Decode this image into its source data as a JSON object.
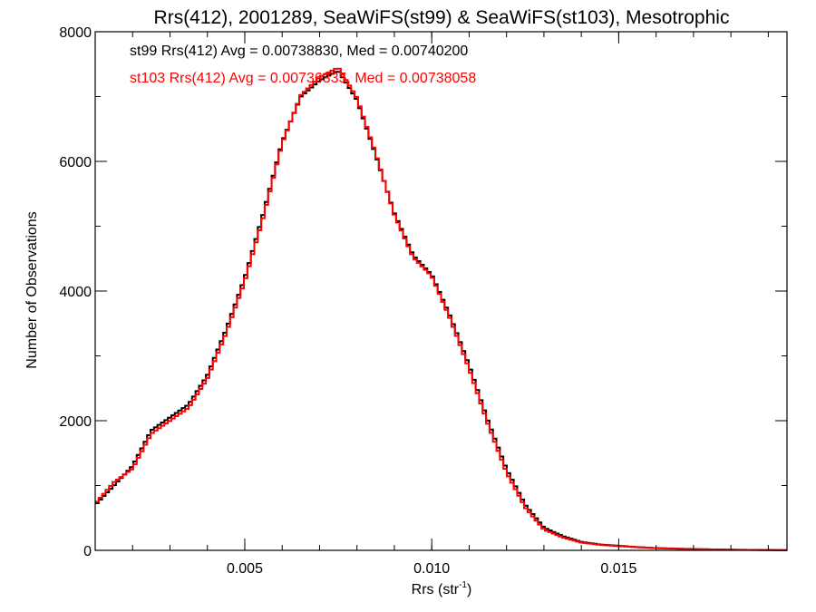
{
  "chart_data": {
    "type": "line",
    "title": "Rrs(412), 2001289, SeaWiFS(st99) & SeaWiFS(st103), Mesotrophic",
    "xlabel": "Rrs (str",
    "xlabel_sup": "-1",
    "xlabel_close": ")",
    "ylabel": "Number of Observations",
    "xlim": [
      0.001,
      0.0195
    ],
    "ylim": [
      0,
      8000
    ],
    "x_ticks": [
      0.005,
      0.01,
      0.015
    ],
    "x_tick_labels": [
      "0.005",
      "0.010",
      "0.015"
    ],
    "y_ticks": [
      0,
      2000,
      4000,
      6000,
      8000
    ],
    "y_tick_labels": [
      "0",
      "2000",
      "4000",
      "6000",
      "8000"
    ],
    "x_minor_step": 0.001,
    "y_minor_step": 1000,
    "grid": false,
    "annotations": [
      {
        "text": "st99 Rrs(412) Avg = 0.00738830, Med = 0.00740200",
        "color": "#000000"
      },
      {
        "text": "st103 Rrs(412) Avg = 0.00736335, Med = 0.00738058",
        "color": "#ff0000"
      }
    ],
    "x": [
      0.001,
      0.0015,
      0.002,
      0.0025,
      0.003,
      0.0035,
      0.004,
      0.0045,
      0.005,
      0.0055,
      0.006,
      0.0065,
      0.007,
      0.0075,
      0.008,
      0.0085,
      0.009,
      0.0095,
      0.01,
      0.0105,
      0.011,
      0.0115,
      0.012,
      0.0125,
      0.013,
      0.0135,
      0.014,
      0.0145,
      0.015,
      0.0155,
      0.016,
      0.017,
      0.018,
      0.019,
      0.0195
    ],
    "series": [
      {
        "color": "#000000",
        "values": [
          700,
          1000,
          1300,
          1850,
          2050,
          2250,
          2700,
          3400,
          4200,
          5200,
          6300,
          7000,
          7250,
          7400,
          6950,
          6100,
          5200,
          4550,
          4250,
          3600,
          2850,
          2000,
          1250,
          700,
          350,
          220,
          130,
          90,
          70,
          50,
          35,
          20,
          10,
          5,
          3
        ]
      },
      {
        "color": "#ff0000",
        "values": [
          720,
          1050,
          1260,
          1800,
          2000,
          2200,
          2650,
          3350,
          4150,
          5150,
          6280,
          7020,
          7300,
          7450,
          6980,
          6120,
          5180,
          4520,
          4230,
          3560,
          2800,
          1950,
          1200,
          660,
          320,
          200,
          120,
          85,
          65,
          48,
          33,
          18,
          9,
          4,
          2
        ]
      }
    ]
  }
}
